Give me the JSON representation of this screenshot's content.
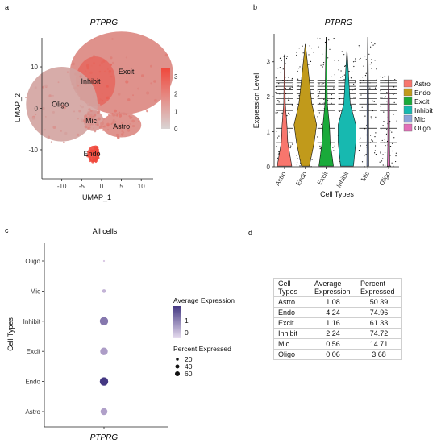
{
  "panels": {
    "a": {
      "letter": "a",
      "title": "PTPRG",
      "xlabel": "UMAP_1",
      "ylabel": "UMAP_2",
      "xticks": [
        "-10",
        "-5",
        "0",
        "5",
        "10"
      ],
      "yticks": [
        "10",
        "0",
        "-10"
      ],
      "colorbar_ticks": [
        "3",
        "2",
        "1",
        "0"
      ],
      "cluster_labels": [
        "Inhibit",
        "Excit",
        "Oligo",
        "Mic",
        "Astro",
        "Endo"
      ]
    },
    "b": {
      "letter": "b",
      "title": "PTPRG",
      "xlabel": "Cell Types",
      "ylabel": "Expression Level"
    },
    "c": {
      "letter": "c",
      "title": "All cells",
      "xlabel": "PTPRG",
      "ylabel": "Cell Types",
      "legend_avg_title": "Average Expression",
      "legend_avg_ticks": [
        "1",
        "0"
      ],
      "legend_pct_title": "Percent Expressed",
      "legend_pct_ticks": [
        "20",
        "40",
        "60"
      ]
    },
    "d": {
      "letter": "d"
    }
  },
  "colors": {
    "Astro": "#f8766d",
    "Endo": "#c19a1b",
    "Excit": "#1aaa3a",
    "Inhibit": "#17b9b0",
    "Mic": "#8da3d8",
    "Oligo": "#e26fb8",
    "umap_low": "#c9c4c4",
    "umap_high": "#f0473b",
    "dot_low": "#dccbe6",
    "dot_high": "#443883"
  },
  "chart_data": [
    {
      "type": "scatter",
      "title": "PTPRG",
      "xlabel": "UMAP_1",
      "ylabel": "UMAP_2",
      "xlim": [
        -15,
        13
      ],
      "ylim": [
        -17,
        17
      ],
      "color_scale": [
        0,
        3.5
      ],
      "clusters": [
        {
          "name": "Excit",
          "x": 5,
          "y": 8.5,
          "mean_expression": 1.16
        },
        {
          "name": "Inhibit",
          "x": -1.5,
          "y": 6.5,
          "mean_expression": 2.24
        },
        {
          "name": "Oligo",
          "x": -10,
          "y": 1,
          "mean_expression": 0.06
        },
        {
          "name": "Mic",
          "x": -2,
          "y": -3,
          "mean_expression": 0.56
        },
        {
          "name": "Astro",
          "x": 5,
          "y": -4,
          "mean_expression": 1.08
        },
        {
          "name": "Endo",
          "x": -2,
          "y": -11,
          "mean_expression": 4.24
        }
      ]
    },
    {
      "type": "violin",
      "title": "PTPRG",
      "xlabel": "Cell Types",
      "ylabel": "Expression Level",
      "categories": [
        "Astro",
        "Endo",
        "Excit",
        "Inhibit",
        "Mic",
        "Oligo"
      ],
      "yticks": [
        0,
        1,
        2,
        3
      ],
      "ylim": [
        0,
        3.8
      ],
      "max_values": [
        3.2,
        3.5,
        3.7,
        3.3,
        3.7,
        2.6
      ],
      "legend": [
        "Astro",
        "Endo",
        "Excit",
        "Inhibit",
        "Mic",
        "Oligo"
      ]
    },
    {
      "type": "dot",
      "title": "All cells",
      "xlabel": "PTPRG",
      "ylabel": "Cell Types",
      "categories": [
        "Oligo",
        "Mic",
        "Inhibit",
        "Excit",
        "Endo",
        "Astro"
      ],
      "average_expression": [
        0.06,
        0.56,
        2.24,
        1.16,
        4.24,
        1.08
      ],
      "percent_expressed": [
        3.68,
        14.71,
        74.72,
        61.33,
        74.96,
        50.39
      ]
    },
    {
      "type": "table",
      "headers": [
        "Cell Types",
        "Average Expression",
        "Percent Expressed"
      ],
      "rows": [
        [
          "Astro",
          "1.08",
          "50.39"
        ],
        [
          "Endo",
          "4.24",
          "74.96"
        ],
        [
          "Excit",
          "1.16",
          "61.33"
        ],
        [
          "Inhibit",
          "2.24",
          "74.72"
        ],
        [
          "Mic",
          "0.56",
          "14.71"
        ],
        [
          "Oligo",
          "0.06",
          "3.68"
        ]
      ]
    }
  ]
}
